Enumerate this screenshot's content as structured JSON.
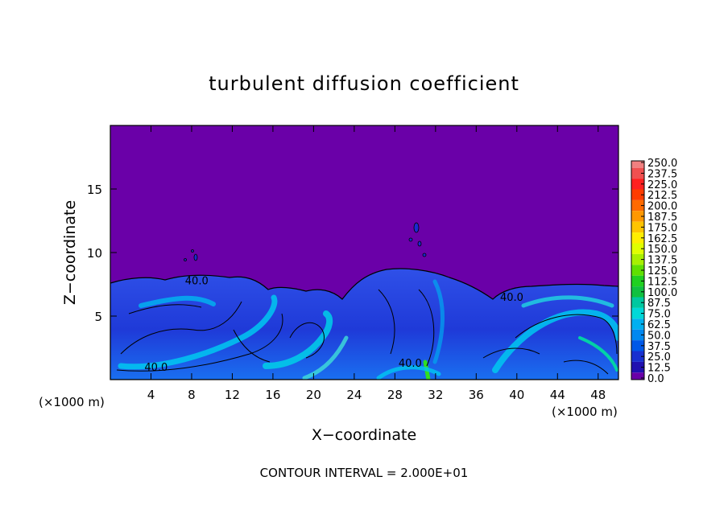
{
  "chart_data": {
    "type": "heatmap",
    "title": "turbulent diffusion coefficient",
    "xlabel": "X−coordinate",
    "ylabel": "Z−coordinate",
    "x_unit_left": "(×1000 m)",
    "x_unit_right": "(×1000 m)",
    "footer": "CONTOUR INTERVAL = 2.000E+01",
    "xlim": [
      0,
      50
    ],
    "ylim": [
      0,
      20
    ],
    "x_ticks": [
      4,
      8,
      12,
      16,
      20,
      24,
      28,
      32,
      36,
      40,
      44,
      48
    ],
    "y_ticks": [
      5,
      10,
      15
    ],
    "contour_labels": [
      "40.0",
      "40.0",
      "40.0",
      "40.0"
    ],
    "colorbar": {
      "levels": [
        "250.0",
        "237.5",
        "225.0",
        "212.5",
        "200.0",
        "187.5",
        "175.0",
        "162.5",
        "150.0",
        "137.5",
        "125.0",
        "112.5",
        "100.0",
        "87.5",
        "75.0",
        "62.5",
        "50.0",
        "37.5",
        "25.0",
        "12.5",
        "0.0"
      ],
      "colors": [
        "#f08080",
        "#f05050",
        "#ff2020",
        "#ff3c00",
        "#ff6a00",
        "#ff9800",
        "#ffc400",
        "#ffee00",
        "#e0ff00",
        "#a8f000",
        "#60e000",
        "#20d020",
        "#10c040",
        "#00c8a0",
        "#00d8d8",
        "#00b0f0",
        "#0088f0",
        "#0058e8",
        "#1830d0",
        "#2010b0",
        "#6a00a8"
      ]
    },
    "background_value": "0.0",
    "flow_top_z": 7.5
  }
}
